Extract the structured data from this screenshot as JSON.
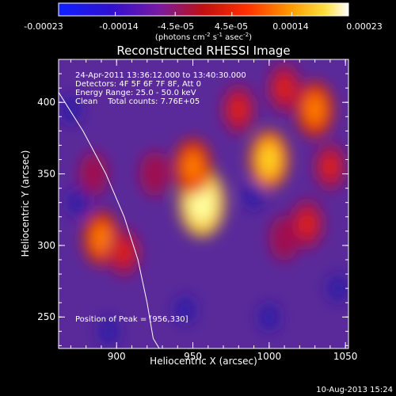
{
  "colorbar": {
    "tick_labels": [
      "-0.00023",
      "-0.00014",
      "-4.5e-05",
      "4.5e-05",
      "0.00014",
      "0.00023"
    ],
    "unit_label": {
      "pre": "(photons cm",
      "sup1": "-2",
      "mid1": " s",
      "sup2": "-1",
      "mid2": " asec",
      "sup3": "-2",
      "post": ")"
    },
    "range": [
      -0.00023,
      0.00023
    ]
  },
  "chart_data": {
    "type": "heatmap",
    "title": "Reconstructed RHESSI Image",
    "xlabel": "Heliocentric X (arcsec)",
    "ylabel": "Heliocentric Y (arcsec)",
    "xlim": [
      862,
      1052
    ],
    "ylim": [
      228,
      430
    ],
    "x_ticks": [
      900,
      950,
      1000,
      1050
    ],
    "y_ticks": [
      250,
      300,
      350,
      400
    ],
    "colormap": "blue-purple-red-orange-yellow-white (RHESSI)",
    "annotations": [
      "24-Apr-2011 13:36:12.000 to 13:40:30.000",
      "Detectors: 4F 5F 6F 7F 8F, Att 0",
      "Energy Range: 25.0 - 50.0 keV",
      "Clean    Total counts: 7.76E+05"
    ],
    "peak_text": "Position of Peak = [956,330]",
    "peak": [
      956,
      330
    ],
    "limb_curve": {
      "x": [
        862,
        878,
        893,
        905,
        914,
        920,
        924,
        928
      ],
      "y": [
        407,
        380,
        350,
        320,
        290,
        260,
        235,
        228
      ]
    },
    "sources": [
      {
        "x": 956,
        "y": 330,
        "intensity": 1.0
      },
      {
        "x": 950,
        "y": 355,
        "intensity": 0.7
      },
      {
        "x": 1000,
        "y": 360,
        "intensity": 0.75
      },
      {
        "x": 1030,
        "y": 395,
        "intensity": 0.7
      },
      {
        "x": 1010,
        "y": 410,
        "intensity": 0.55
      },
      {
        "x": 980,
        "y": 395,
        "intensity": 0.55
      },
      {
        "x": 890,
        "y": 305,
        "intensity": 0.65
      },
      {
        "x": 905,
        "y": 295,
        "intensity": 0.5
      },
      {
        "x": 1025,
        "y": 315,
        "intensity": 0.55
      },
      {
        "x": 1040,
        "y": 355,
        "intensity": 0.5
      },
      {
        "x": 925,
        "y": 350,
        "intensity": 0.45
      },
      {
        "x": 885,
        "y": 350,
        "intensity": 0.4
      },
      {
        "x": 1010,
        "y": 305,
        "intensity": 0.45
      }
    ]
  },
  "footer_timestamp": "10-Aug-2013 15:24"
}
